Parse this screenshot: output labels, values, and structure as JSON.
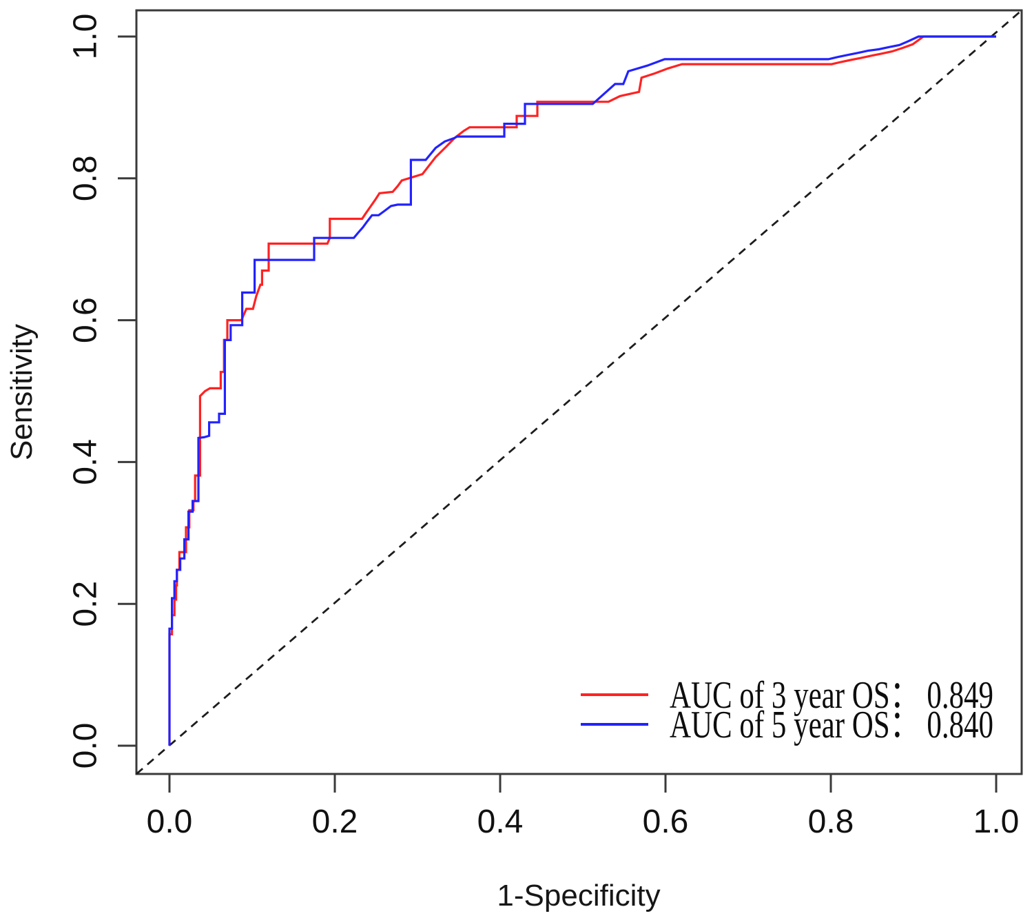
{
  "figure": {
    "background": "#ffffff",
    "axis_color": "#3a3a3a",
    "text_color": "#111111"
  },
  "chart_data": {
    "type": "line",
    "subtype": "roc-step-curves",
    "title": "",
    "xlabel": "1-Specificity",
    "ylabel": "Sensitivity",
    "xlim": [
      0,
      1
    ],
    "ylim": [
      0,
      1
    ],
    "grid": false,
    "legend_position": "bottomright",
    "x_tick_labels": [
      "0.0",
      "0.2",
      "0.4",
      "0.6",
      "0.8",
      "1.0"
    ],
    "y_tick_labels": [
      "0.0",
      "0.2",
      "0.4",
      "0.6",
      "0.8",
      "1.0"
    ],
    "x_ticks": [
      0,
      0.2,
      0.4,
      0.6,
      0.8,
      1.0
    ],
    "y_ticks": [
      0,
      0.2,
      0.4,
      0.6,
      0.8,
      1.0
    ],
    "reference_line": {
      "description": "chance diagonal",
      "style": "dashed",
      "color": "#1d1d1d",
      "from": [
        0,
        0
      ],
      "to": [
        1,
        1
      ]
    },
    "series": [
      {
        "name": "AUC of 3 year OS",
        "auc": "0.849",
        "color": "#ff2222",
        "legend_label": "AUC of 3 year OS： 0.849",
        "points": [
          [
            0,
            0
          ],
          [
            0,
            0.157
          ],
          [
            0.003,
            0.157
          ],
          [
            0.003,
            0.184
          ],
          [
            0.006,
            0.184
          ],
          [
            0.006,
            0.206
          ],
          [
            0.008,
            0.206
          ],
          [
            0.008,
            0.226
          ],
          [
            0.009,
            0.226
          ],
          [
            0.009,
            0.248
          ],
          [
            0.012,
            0.248
          ],
          [
            0.012,
            0.273
          ],
          [
            0.02,
            0.273
          ],
          [
            0.02,
            0.308
          ],
          [
            0.024,
            0.308
          ],
          [
            0.024,
            0.332
          ],
          [
            0.029,
            0.332
          ],
          [
            0.029,
            0.345
          ],
          [
            0.031,
            0.345
          ],
          [
            0.031,
            0.381
          ],
          [
            0.037,
            0.381
          ],
          [
            0.037,
            0.493
          ],
          [
            0.043,
            0.5
          ],
          [
            0.049,
            0.504
          ],
          [
            0.062,
            0.504
          ],
          [
            0.062,
            0.527
          ],
          [
            0.066,
            0.527
          ],
          [
            0.066,
            0.572
          ],
          [
            0.07,
            0.572
          ],
          [
            0.07,
            0.6
          ],
          [
            0.087,
            0.6
          ],
          [
            0.09,
            0.608
          ],
          [
            0.093,
            0.616
          ],
          [
            0.101,
            0.616
          ],
          [
            0.105,
            0.634
          ],
          [
            0.11,
            0.65
          ],
          [
            0.112,
            0.65
          ],
          [
            0.112,
            0.67
          ],
          [
            0.12,
            0.67
          ],
          [
            0.12,
            0.708
          ],
          [
            0.191,
            0.708
          ],
          [
            0.194,
            0.716
          ],
          [
            0.194,
            0.743
          ],
          [
            0.233,
            0.743
          ],
          [
            0.237,
            0.75
          ],
          [
            0.243,
            0.76
          ],
          [
            0.249,
            0.77
          ],
          [
            0.254,
            0.779
          ],
          [
            0.27,
            0.781
          ],
          [
            0.276,
            0.789
          ],
          [
            0.281,
            0.797
          ],
          [
            0.292,
            0.801
          ],
          [
            0.306,
            0.806
          ],
          [
            0.322,
            0.83
          ],
          [
            0.335,
            0.845
          ],
          [
            0.345,
            0.857
          ],
          [
            0.356,
            0.867
          ],
          [
            0.363,
            0.872
          ],
          [
            0.42,
            0.872
          ],
          [
            0.42,
            0.888
          ],
          [
            0.445,
            0.888
          ],
          [
            0.445,
            0.908
          ],
          [
            0.531,
            0.908
          ],
          [
            0.545,
            0.916
          ],
          [
            0.568,
            0.922
          ],
          [
            0.571,
            0.942
          ],
          [
            0.587,
            0.948
          ],
          [
            0.603,
            0.955
          ],
          [
            0.62,
            0.961
          ],
          [
            0.801,
            0.961
          ],
          [
            0.812,
            0.964
          ],
          [
            0.824,
            0.967
          ],
          [
            0.837,
            0.97
          ],
          [
            0.849,
            0.973
          ],
          [
            0.862,
            0.976
          ],
          [
            0.874,
            0.979
          ],
          [
            0.887,
            0.984
          ],
          [
            0.899,
            0.989
          ],
          [
            0.912,
            1
          ],
          [
            1,
            1
          ]
        ]
      },
      {
        "name": "AUC of 5 year OS",
        "auc": "0.840",
        "color": "#2222ff",
        "legend_label": "AUC of 5 year OS： 0.840",
        "points": [
          [
            0,
            0
          ],
          [
            0,
            0.165
          ],
          [
            0.003,
            0.165
          ],
          [
            0.003,
            0.208
          ],
          [
            0.006,
            0.208
          ],
          [
            0.006,
            0.232
          ],
          [
            0.009,
            0.232
          ],
          [
            0.009,
            0.248
          ],
          [
            0.013,
            0.248
          ],
          [
            0.013,
            0.264
          ],
          [
            0.018,
            0.264
          ],
          [
            0.018,
            0.291
          ],
          [
            0.023,
            0.291
          ],
          [
            0.023,
            0.33
          ],
          [
            0.028,
            0.33
          ],
          [
            0.028,
            0.345
          ],
          [
            0.035,
            0.345
          ],
          [
            0.035,
            0.434
          ],
          [
            0.042,
            0.435
          ],
          [
            0.048,
            0.437
          ],
          [
            0.048,
            0.456
          ],
          [
            0.06,
            0.456
          ],
          [
            0.06,
            0.468
          ],
          [
            0.067,
            0.468
          ],
          [
            0.067,
            0.572
          ],
          [
            0.074,
            0.572
          ],
          [
            0.074,
            0.593
          ],
          [
            0.088,
            0.593
          ],
          [
            0.088,
            0.639
          ],
          [
            0.103,
            0.639
          ],
          [
            0.103,
            0.685
          ],
          [
            0.175,
            0.685
          ],
          [
            0.175,
            0.716
          ],
          [
            0.223,
            0.716
          ],
          [
            0.228,
            0.723
          ],
          [
            0.234,
            0.731
          ],
          [
            0.239,
            0.739
          ],
          [
            0.245,
            0.748
          ],
          [
            0.253,
            0.748
          ],
          [
            0.26,
            0.754
          ],
          [
            0.268,
            0.761
          ],
          [
            0.276,
            0.763
          ],
          [
            0.292,
            0.763
          ],
          [
            0.292,
            0.826
          ],
          [
            0.31,
            0.826
          ],
          [
            0.322,
            0.843
          ],
          [
            0.333,
            0.852
          ],
          [
            0.345,
            0.857
          ],
          [
            0.348,
            0.859
          ],
          [
            0.405,
            0.859
          ],
          [
            0.405,
            0.877
          ],
          [
            0.43,
            0.877
          ],
          [
            0.43,
            0.905
          ],
          [
            0.512,
            0.905
          ],
          [
            0.539,
            0.933
          ],
          [
            0.549,
            0.933
          ],
          [
            0.555,
            0.951
          ],
          [
            0.578,
            0.959
          ],
          [
            0.599,
            0.968
          ],
          [
            0.797,
            0.968
          ],
          [
            0.808,
            0.971
          ],
          [
            0.82,
            0.974
          ],
          [
            0.833,
            0.977
          ],
          [
            0.845,
            0.98
          ],
          [
            0.858,
            0.982
          ],
          [
            0.87,
            0.985
          ],
          [
            0.883,
            0.988
          ],
          [
            0.893,
            0.993
          ],
          [
            0.906,
            1
          ],
          [
            1,
            1
          ]
        ]
      }
    ]
  }
}
